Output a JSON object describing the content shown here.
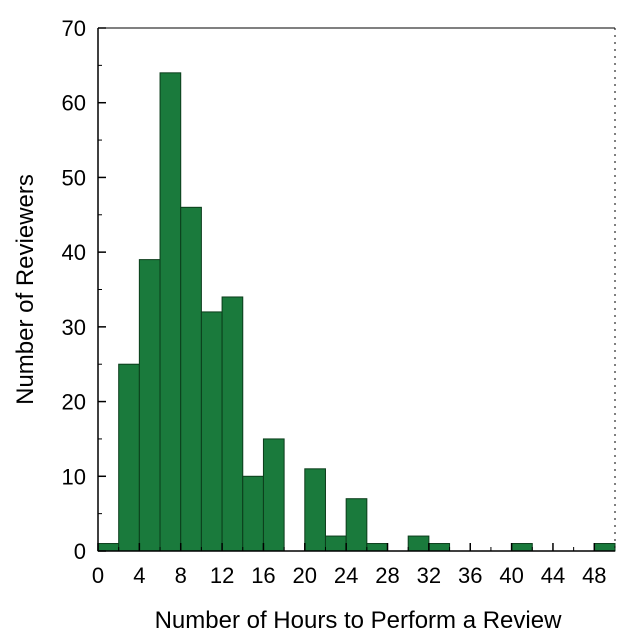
{
  "chart_data": {
    "type": "bar",
    "title": "",
    "xlabel": "Number of Hours to Perform a Review",
    "ylabel": "Number of Reviewers",
    "xlim": [
      0,
      50
    ],
    "ylim": [
      0,
      70
    ],
    "bin_width": 2,
    "x_ticks": [
      0,
      4,
      8,
      12,
      16,
      20,
      24,
      28,
      32,
      36,
      40,
      44,
      48
    ],
    "y_ticks": [
      0,
      10,
      20,
      30,
      40,
      50,
      60,
      70
    ],
    "bar_color": "#1a7a3c",
    "grid": false,
    "series": [
      {
        "bin_starts": [
          0,
          2,
          4,
          6,
          8,
          10,
          12,
          14,
          16,
          18,
          20,
          22,
          24,
          26,
          28,
          30,
          32,
          34,
          36,
          38,
          40,
          42,
          44,
          46,
          48
        ],
        "values": [
          1,
          25,
          39,
          64,
          46,
          32,
          34,
          10,
          15,
          0,
          11,
          2,
          7,
          1,
          0,
          2,
          1,
          0,
          0,
          0,
          1,
          0,
          0,
          0,
          1
        ]
      }
    ]
  }
}
